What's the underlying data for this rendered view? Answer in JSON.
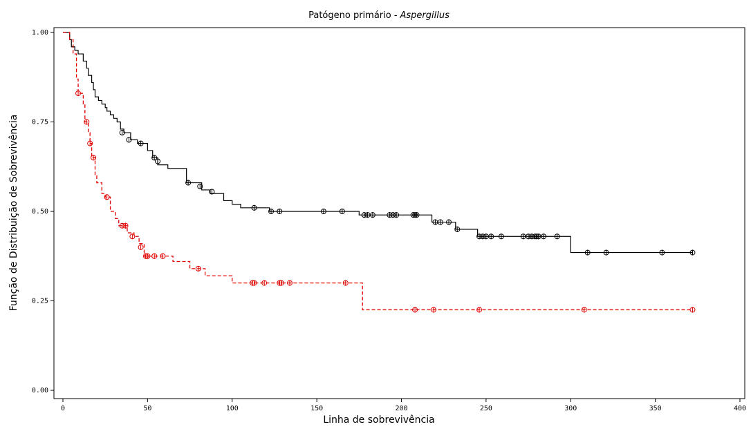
{
  "chart_data": {
    "type": "step",
    "title": "Patógeno primário -",
    "title_italic": "Aspergillus",
    "x_label": "Linha de sobrevivência",
    "y_label": "Função de Distribuição de Sobrevivência",
    "xlim": [
      0,
      400
    ],
    "ylim": [
      0,
      1
    ],
    "xticks": [
      0,
      50,
      100,
      150,
      200,
      250,
      300,
      350,
      400
    ],
    "yticks": [
      {
        "value": 0,
        "label": "0.00"
      },
      0.25,
      {
        "value": 0.5,
        "label": "0.50"
      },
      0.75,
      {
        "value": 1,
        "label": "1.00"
      }
    ],
    "series": [
      {
        "color": "#000000",
        "dashed": false,
        "x": [
          0,
          4,
          5,
          7,
          9,
          12,
          14,
          15,
          17,
          18,
          19,
          21,
          23,
          25,
          26,
          28,
          30,
          32,
          34,
          36,
          40,
          44,
          50,
          53,
          56,
          62,
          73,
          82,
          87,
          95,
          100,
          105,
          122,
          175,
          218,
          232,
          245,
          300,
          372
        ],
        "values": [
          1.0,
          0.98,
          0.96,
          0.95,
          0.94,
          0.92,
          0.9,
          0.88,
          0.86,
          0.84,
          0.82,
          0.81,
          0.8,
          0.79,
          0.78,
          0.77,
          0.76,
          0.75,
          0.73,
          0.72,
          0.7,
          0.69,
          0.67,
          0.65,
          0.63,
          0.62,
          0.58,
          0.56,
          0.55,
          0.53,
          0.52,
          0.51,
          0.5,
          0.49,
          0.47,
          0.45,
          0.43,
          0.385,
          0.385
        ],
        "censored_x": [
          35,
          39,
          46,
          54,
          56,
          74,
          81,
          88,
          113,
          123,
          128,
          154,
          165,
          178,
          180,
          183,
          193,
          195,
          197,
          207,
          208,
          209,
          220,
          223,
          228,
          233,
          246,
          248,
          250,
          253,
          259,
          272,
          275,
          277,
          279,
          280,
          281,
          284,
          292,
          310,
          321,
          354,
          372
        ],
        "censored_values": [
          0.72,
          0.7,
          0.69,
          0.65,
          0.64,
          0.58,
          0.57,
          0.555,
          0.51,
          0.5,
          0.5,
          0.5,
          0.5,
          0.49,
          0.49,
          0.49,
          0.49,
          0.49,
          0.49,
          0.49,
          0.49,
          0.49,
          0.47,
          0.47,
          0.47,
          0.45,
          0.43,
          0.43,
          0.43,
          0.43,
          0.43,
          0.43,
          0.43,
          0.43,
          0.43,
          0.43,
          0.43,
          0.43,
          0.43,
          0.385,
          0.385,
          0.385,
          0.385
        ]
      },
      {
        "color": "#e00000",
        "dashed": true,
        "x": [
          0,
          4,
          6,
          8,
          9,
          12,
          13,
          15,
          16,
          17,
          19,
          20,
          23,
          25,
          28,
          31,
          33,
          38,
          42,
          45,
          48,
          65,
          75,
          84,
          100,
          177,
          372
        ],
        "values": [
          1.0,
          0.98,
          0.94,
          0.87,
          0.83,
          0.8,
          0.75,
          0.72,
          0.69,
          0.65,
          0.6,
          0.58,
          0.55,
          0.54,
          0.5,
          0.48,
          0.46,
          0.44,
          0.43,
          0.41,
          0.375,
          0.36,
          0.34,
          0.32,
          0.3,
          0.225,
          0.225
        ],
        "censored_x": [
          9,
          14,
          16,
          18,
          26,
          35,
          37,
          41,
          46,
          49,
          50,
          54,
          59,
          80,
          112,
          113,
          119,
          128,
          129,
          134,
          167,
          208,
          219,
          246,
          308,
          372
        ],
        "censored_values": [
          0.83,
          0.75,
          0.69,
          0.65,
          0.54,
          0.46,
          0.46,
          0.43,
          0.4,
          0.375,
          0.375,
          0.375,
          0.375,
          0.34,
          0.3,
          0.3,
          0.3,
          0.3,
          0.3,
          0.3,
          0.3,
          0.225,
          0.225,
          0.225,
          0.225,
          0.225
        ]
      }
    ]
  }
}
